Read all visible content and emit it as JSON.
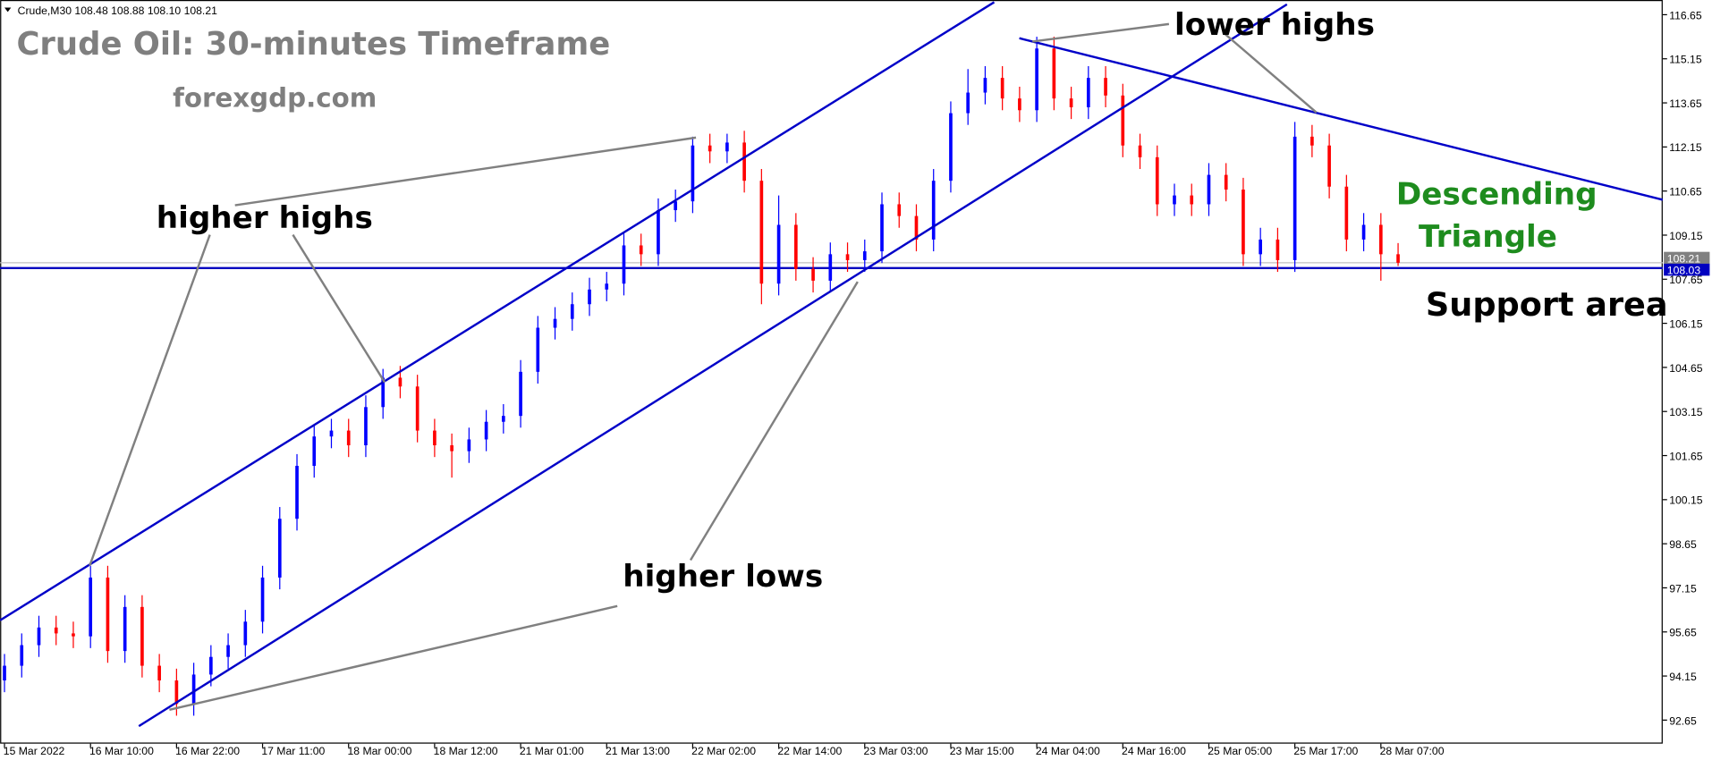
{
  "chart_data": {
    "type": "candlestick",
    "info": "Crude,M30  108.48 108.88 108.10 108.21",
    "title": "Crude Oil: 30-minutes Timeframe",
    "subtitle": "forexgdp.com",
    "annotations": {
      "higher_highs": "higher highs",
      "higher_lows": "higher lows",
      "lower_highs": "lower highs",
      "pattern": [
        "Descending",
        "Triangle"
      ],
      "support": "Support area"
    },
    "up_color": "#0000ff",
    "down_color": "#ff0000",
    "categories": [
      "15 Mar 2022",
      null,
      null,
      null,
      null,
      "16 Mar 10:00",
      null,
      null,
      null,
      null,
      "16 Mar 22:00",
      null,
      null,
      null,
      null,
      "17 Mar 11:00",
      null,
      null,
      null,
      null,
      "18 Mar 00:00",
      null,
      null,
      null,
      null,
      "18 Mar 12:00",
      null,
      null,
      null,
      null,
      "21 Mar 01:00",
      null,
      null,
      null,
      null,
      "21 Mar 13:00",
      null,
      null,
      null,
      null,
      "22 Mar 02:00",
      null,
      null,
      null,
      null,
      "22 Mar 14:00",
      null,
      null,
      null,
      null,
      "23 Mar 03:00",
      null,
      null,
      null,
      null,
      "23 Mar 15:00",
      null,
      null,
      null,
      null,
      "24 Mar 04:00",
      null,
      null,
      null,
      null,
      "24 Mar 16:00",
      null,
      null,
      null,
      null,
      "25 Mar 05:00",
      null,
      null,
      null,
      null,
      "25 Mar 17:00",
      null,
      null,
      null,
      null,
      "28 Mar 07:00",
      null
    ],
    "ohlc": [
      [
        94.0,
        94.9,
        93.6,
        94.5
      ],
      [
        94.5,
        95.6,
        94.1,
        95.2
      ],
      [
        95.2,
        96.2,
        94.8,
        95.8
      ],
      [
        95.8,
        96.2,
        95.2,
        95.6
      ],
      [
        95.6,
        96.0,
        95.1,
        95.5
      ],
      [
        95.5,
        97.9,
        95.1,
        97.5
      ],
      [
        97.5,
        97.9,
        94.6,
        95.0
      ],
      [
        95.0,
        96.9,
        94.6,
        96.5
      ],
      [
        96.5,
        96.9,
        94.1,
        94.5
      ],
      [
        94.5,
        94.9,
        93.6,
        94.0
      ],
      [
        94.0,
        94.4,
        92.8,
        93.2
      ],
      [
        93.2,
        94.6,
        92.8,
        94.2
      ],
      [
        94.2,
        95.2,
        93.8,
        94.8
      ],
      [
        94.8,
        95.6,
        94.4,
        95.2
      ],
      [
        95.2,
        96.4,
        94.8,
        96.0
      ],
      [
        96.0,
        97.9,
        95.6,
        97.5
      ],
      [
        97.5,
        99.9,
        97.1,
        99.5
      ],
      [
        99.5,
        101.7,
        99.1,
        101.3
      ],
      [
        101.3,
        102.7,
        100.9,
        102.3
      ],
      [
        102.3,
        102.9,
        101.9,
        102.5
      ],
      [
        102.5,
        102.9,
        101.6,
        102.0
      ],
      [
        102.0,
        103.7,
        101.6,
        103.3
      ],
      [
        103.3,
        104.6,
        102.9,
        104.3
      ],
      [
        104.3,
        104.7,
        103.6,
        104.0
      ],
      [
        104.0,
        104.4,
        102.1,
        102.5
      ],
      [
        102.5,
        102.9,
        101.6,
        102.0
      ],
      [
        102.0,
        102.4,
        100.9,
        101.8
      ],
      [
        101.8,
        102.6,
        101.4,
        102.2
      ],
      [
        102.2,
        103.2,
        101.8,
        102.8
      ],
      [
        102.8,
        103.4,
        102.4,
        103.0
      ],
      [
        103.0,
        104.9,
        102.6,
        104.5
      ],
      [
        104.5,
        106.4,
        104.1,
        106.0
      ],
      [
        106.0,
        106.7,
        105.6,
        106.3
      ],
      [
        106.3,
        107.2,
        105.9,
        106.8
      ],
      [
        106.8,
        107.7,
        106.4,
        107.3
      ],
      [
        107.3,
        107.9,
        106.9,
        107.5
      ],
      [
        107.5,
        109.2,
        107.1,
        108.8
      ],
      [
        108.8,
        109.2,
        108.1,
        108.5
      ],
      [
        108.5,
        110.4,
        108.1,
        110.0
      ],
      [
        110.0,
        110.7,
        109.6,
        110.3
      ],
      [
        110.3,
        112.5,
        109.9,
        112.2
      ],
      [
        112.2,
        112.6,
        111.6,
        112.0
      ],
      [
        112.0,
        112.6,
        111.6,
        112.3
      ],
      [
        112.3,
        112.7,
        110.6,
        111.0
      ],
      [
        111.0,
        111.4,
        106.8,
        107.5
      ],
      [
        107.5,
        110.5,
        107.1,
        109.5
      ],
      [
        109.5,
        109.9,
        107.6,
        108.0
      ],
      [
        108.0,
        108.4,
        107.2,
        107.6
      ],
      [
        107.6,
        108.9,
        107.2,
        108.5
      ],
      [
        108.5,
        108.9,
        107.9,
        108.3
      ],
      [
        108.3,
        109.0,
        107.9,
        108.6
      ],
      [
        108.6,
        110.6,
        108.2,
        110.2
      ],
      [
        110.2,
        110.6,
        109.4,
        109.8
      ],
      [
        109.8,
        110.2,
        108.6,
        109.0
      ],
      [
        109.0,
        111.4,
        108.6,
        111.0
      ],
      [
        111.0,
        113.7,
        110.6,
        113.3
      ],
      [
        113.3,
        114.8,
        112.9,
        114.0
      ],
      [
        114.0,
        114.9,
        113.6,
        114.5
      ],
      [
        114.5,
        114.9,
        113.4,
        113.8
      ],
      [
        113.8,
        114.2,
        113.0,
        113.4
      ],
      [
        113.4,
        115.9,
        113.0,
        115.5
      ],
      [
        115.5,
        115.9,
        113.4,
        113.8
      ],
      [
        113.8,
        114.2,
        113.1,
        113.5
      ],
      [
        113.5,
        114.9,
        113.1,
        114.5
      ],
      [
        114.5,
        114.9,
        113.5,
        113.9
      ],
      [
        113.9,
        114.3,
        111.8,
        112.2
      ],
      [
        112.2,
        112.6,
        111.4,
        111.8
      ],
      [
        111.8,
        112.2,
        109.8,
        110.2
      ],
      [
        110.2,
        110.9,
        109.8,
        110.5
      ],
      [
        110.5,
        110.9,
        109.8,
        110.2
      ],
      [
        110.2,
        111.6,
        109.8,
        111.2
      ],
      [
        111.2,
        111.6,
        110.3,
        110.7
      ],
      [
        110.7,
        111.1,
        108.1,
        108.5
      ],
      [
        108.5,
        109.4,
        108.1,
        109.0
      ],
      [
        109.0,
        109.4,
        107.9,
        108.3
      ],
      [
        108.3,
        113.0,
        107.9,
        112.5
      ],
      [
        112.5,
        112.9,
        111.8,
        112.2
      ],
      [
        112.2,
        112.6,
        110.4,
        110.8
      ],
      [
        110.8,
        111.2,
        108.6,
        109.0
      ],
      [
        109.0,
        109.9,
        108.6,
        109.5
      ],
      [
        109.5,
        109.9,
        107.6,
        108.5
      ],
      [
        108.5,
        108.88,
        108.1,
        108.21
      ]
    ],
    "price_lines": [
      {
        "value": 108.21,
        "color": "#c0c0c0",
        "tag_color": "#808080"
      },
      {
        "value": 108.03,
        "color": "#0000c0",
        "tag_color": "#0000c0"
      }
    ],
    "ylim": [
      91.85,
      117.15
    ],
    "yticks": [
      92.65,
      94.15,
      95.65,
      97.15,
      98.65,
      100.15,
      101.65,
      103.15,
      104.65,
      106.15,
      107.65,
      109.15,
      110.65,
      112.15,
      113.65,
      115.15,
      116.65
    ]
  }
}
